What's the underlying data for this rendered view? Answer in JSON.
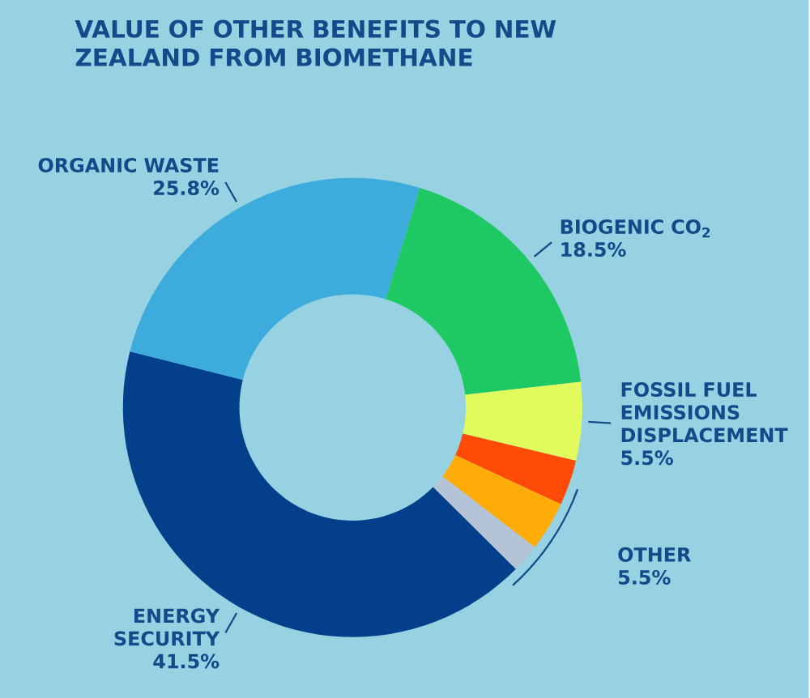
{
  "chart_data": {
    "type": "donut",
    "title": "VALUE OF OTHER BENEFITS TO NEW ZEALAND FROM BIOMETHANE",
    "categories": [
      "BIOGENIC CO$_{2}$",
      "FOSSIL FUEL EMISSIONS DISPLACEMENT",
      null,
      null,
      null,
      "ENERGY SECURITY",
      "ORGANIC WASTE"
    ],
    "values": [
      18.5,
      5.5,
      3.2,
      3.5,
      2.0,
      41.5,
      25.8
    ],
    "value_labels": [
      "18.5%",
      "5.5%",
      null,
      null,
      null,
      "41.5%",
      "25.8%"
    ],
    "colors": [
      "#1ec863",
      "#e2fb5c",
      "#ff4a08",
      "#ffac08",
      "#b5c3d6",
      "#033f8a",
      "#3dacdc"
    ],
    "annotations": [
      "OTHER 5.5%"
    ]
  }
}
